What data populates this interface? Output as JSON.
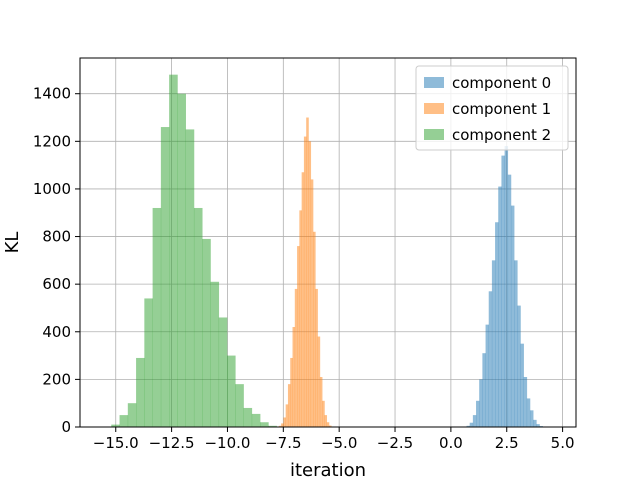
{
  "chart_data": {
    "type": "bar",
    "title": "",
    "xlabel": "iteration",
    "ylabel": "KL",
    "xlim": [
      -16.6,
      5.6
    ],
    "ylim": [
      0,
      1550
    ],
    "grid": true,
    "legend_position": "top-right",
    "x_ticks": [
      {
        "value": -15.0,
        "label": "−15.0"
      },
      {
        "value": -12.5,
        "label": "−12.5"
      },
      {
        "value": -10.0,
        "label": "−10.0"
      },
      {
        "value": -7.5,
        "label": "−7.5"
      },
      {
        "value": -5.0,
        "label": "−5.0"
      },
      {
        "value": -2.5,
        "label": "−2.5"
      },
      {
        "value": 0.0,
        "label": "0.0"
      },
      {
        "value": 2.5,
        "label": "2.5"
      },
      {
        "value": 5.0,
        "label": "5.0"
      }
    ],
    "y_ticks": [
      {
        "value": 0,
        "label": "0"
      },
      {
        "value": 200,
        "label": "200"
      },
      {
        "value": 400,
        "label": "400"
      },
      {
        "value": 600,
        "label": "600"
      },
      {
        "value": 800,
        "label": "800"
      },
      {
        "value": 1000,
        "label": "1000"
      },
      {
        "value": 1200,
        "label": "1200"
      },
      {
        "value": 1400,
        "label": "1400"
      }
    ],
    "series": [
      {
        "name": "component 0",
        "color": "#1f77b4",
        "opacity": 0.5,
        "bin_start": 0.7,
        "bin_width": 0.142,
        "counts": [
          5,
          18,
          50,
          110,
          200,
          310,
          430,
          570,
          700,
          860,
          1010,
          1140,
          1180,
          1060,
          930,
          700,
          510,
          350,
          210,
          120,
          70,
          30,
          12,
          4,
          1
        ]
      },
      {
        "name": "component 1",
        "color": "#ff7f0e",
        "opacity": 0.5,
        "bin_start": -7.7,
        "bin_width": 0.102,
        "counts": [
          5,
          15,
          40,
          95,
          180,
          290,
          420,
          580,
          760,
          910,
          1070,
          1220,
          1300,
          1200,
          1040,
          820,
          580,
          380,
          210,
          110,
          50,
          20,
          6,
          2
        ]
      },
      {
        "name": "component 2",
        "color": "#2ca02c",
        "opacity": 0.5,
        "bin_start": -15.2,
        "bin_width": 0.37,
        "counts": [
          10,
          50,
          100,
          290,
          540,
          920,
          1260,
          1480,
          1400,
          1250,
          920,
          790,
          610,
          460,
          300,
          180,
          80,
          55,
          20,
          5,
          1
        ]
      }
    ]
  }
}
